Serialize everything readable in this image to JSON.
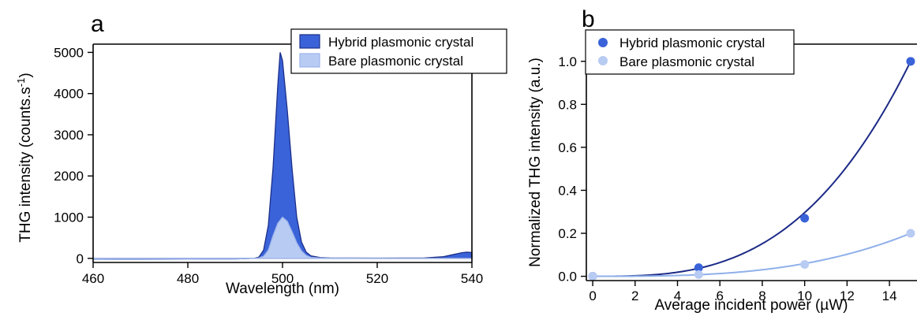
{
  "chart_data": [
    {
      "panel": "a",
      "type": "area",
      "xlabel": "Wavelength (nm)",
      "ylabel": "THG intensity (counts.s",
      "ylabel_sup": "-1",
      "ylabel_close": ")",
      "xlim": [
        460,
        540
      ],
      "ylim": [
        -100,
        5200
      ],
      "xticks": [
        460,
        480,
        500,
        520,
        540
      ],
      "yticks": [
        0,
        1000,
        2000,
        3000,
        4000,
        5000
      ],
      "legend_position": "top-right",
      "series": [
        {
          "name": "Hybrid plasmonic crystal",
          "color": "#3a63d9",
          "stroke": "#1c2f8a",
          "x": [
            460,
            470,
            480,
            490,
            494,
            495,
            496,
            497,
            498,
            499,
            499.5,
            500,
            501,
            502,
            503,
            504,
            505,
            506,
            508,
            510,
            520,
            530,
            534,
            536,
            538,
            539,
            540
          ],
          "y": [
            -30,
            -25,
            -20,
            -15,
            0,
            30,
            200,
            800,
            2200,
            4200,
            5000,
            4800,
            3600,
            2200,
            1000,
            400,
            150,
            60,
            20,
            10,
            5,
            10,
            40,
            90,
            140,
            150,
            140
          ]
        },
        {
          "name": "Bare plasmonic crystal",
          "color": "#b8cbf3",
          "stroke": "#9db4ea",
          "x": [
            460,
            470,
            480,
            490,
            494,
            495,
            496,
            497,
            498,
            499,
            500,
            501,
            502,
            503,
            504,
            505,
            506,
            508,
            510,
            520,
            530,
            540
          ],
          "y": [
            -30,
            -25,
            -20,
            -15,
            0,
            10,
            50,
            200,
            550,
            850,
            1000,
            900,
            650,
            380,
            180,
            70,
            25,
            10,
            5,
            0,
            0,
            0
          ]
        }
      ]
    },
    {
      "panel": "b",
      "type": "scatter",
      "xlabel": "Average incident power (µW)",
      "ylabel": "Normalized THG intensity (a.u.)",
      "xlim": [
        -0.3,
        15.3
      ],
      "ylim": [
        -0.02,
        1.08
      ],
      "xticks": [
        0,
        2,
        4,
        6,
        8,
        10,
        12,
        14
      ],
      "yticks": [
        0.0,
        0.2,
        0.4,
        0.6,
        0.8,
        1.0
      ],
      "ytick_labels": [
        "0.0",
        "0.2",
        "0.4",
        "0.6",
        "0.8",
        "1.0"
      ],
      "legend_position": "top-left",
      "series": [
        {
          "name": "Hybrid plasmonic crystal",
          "color": "#3a63d9",
          "fit_color": "#1c2a86",
          "x": [
            0,
            5,
            10,
            15
          ],
          "y": [
            0.0,
            0.04,
            0.27,
            1.0
          ],
          "fit_max": 1.0
        },
        {
          "name": "Bare plasmonic crystal",
          "color": "#b8cbf3",
          "fit_color": "#8fb0ea",
          "x": [
            0,
            5,
            10,
            15
          ],
          "y": [
            0.0,
            0.008,
            0.055,
            0.2
          ],
          "fit_max": 0.2
        }
      ]
    }
  ]
}
